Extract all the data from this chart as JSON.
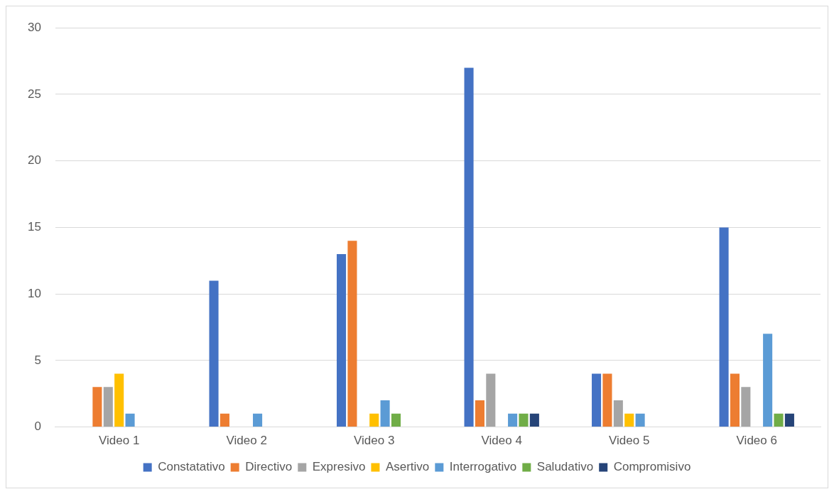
{
  "chart_data": {
    "type": "bar",
    "categories": [
      "Video 1",
      "Video 2",
      "Video 3",
      "Video 4",
      "Video 5",
      "Video 6"
    ],
    "series": [
      {
        "name": "Constatativo",
        "color": "#4472c4",
        "values": [
          0,
          11,
          13,
          27,
          4,
          15
        ]
      },
      {
        "name": "Directivo",
        "color": "#ed7d31",
        "values": [
          3,
          1,
          14,
          2,
          4,
          4
        ]
      },
      {
        "name": "Expresivo",
        "color": "#a5a5a5",
        "values": [
          3,
          0,
          0,
          4,
          2,
          3
        ]
      },
      {
        "name": "Asertivo",
        "color": "#ffc000",
        "values": [
          4,
          0,
          1,
          0,
          1,
          0
        ]
      },
      {
        "name": "Interrogativo",
        "color": "#5b9bd5",
        "values": [
          1,
          1,
          2,
          1,
          1,
          7
        ]
      },
      {
        "name": "Saludativo",
        "color": "#70ad47",
        "values": [
          0,
          0,
          1,
          1,
          0,
          1
        ]
      },
      {
        "name": "Compromisivo",
        "color": "#264478",
        "values": [
          0,
          0,
          0,
          1,
          0,
          1
        ]
      }
    ],
    "ylim": [
      0,
      30
    ],
    "yticks": [
      0,
      5,
      10,
      15,
      20,
      25,
      30
    ],
    "grid": "y",
    "legend": "bottom"
  }
}
